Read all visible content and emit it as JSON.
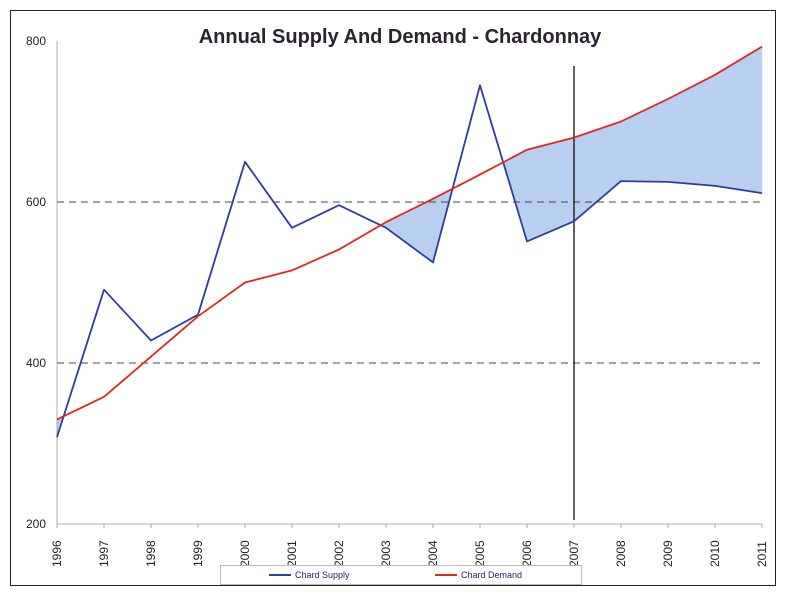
{
  "chart_data": {
    "type": "line",
    "title": "Annual Supply And Demand - Chardonnay",
    "xlabel": "",
    "ylabel": "",
    "ylim": [
      200,
      800
    ],
    "yticks": [
      200,
      400,
      600,
      800
    ],
    "gridlines": [
      400,
      600
    ],
    "marker_x": "2007",
    "categories": [
      "1996",
      "1997",
      "1998",
      "1999",
      "2000",
      "2001",
      "2002",
      "2003",
      "2004",
      "2005",
      "2006",
      "2007",
      "2008",
      "2009",
      "2010",
      "2011"
    ],
    "series": [
      {
        "name": "Chard Supply",
        "color": "#2d3f9a",
        "values": [
          308,
          491,
          428,
          460,
          650,
          568,
          596,
          568,
          525,
          745,
          551,
          576,
          626,
          625,
          620,
          611
        ]
      },
      {
        "name": "Chard Demand",
        "color": "#e0281e",
        "values": [
          330,
          358,
          408,
          458,
          500,
          515,
          541,
          575,
          604,
          634,
          665,
          680,
          700,
          728,
          758,
          793
        ]
      }
    ],
    "shortfall_fill_color": "#b9cff0",
    "legend": {
      "position": "bottom"
    }
  }
}
